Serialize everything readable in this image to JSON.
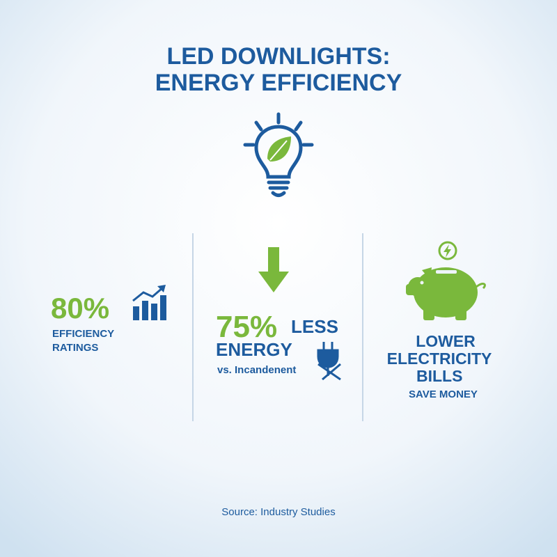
{
  "header": {
    "title_lines": [
      "LED DOWNLIGHTS:",
      "ENERGY EFFICIENCY"
    ]
  },
  "stats": [
    {
      "value": "80%",
      "label_lines": [
        "EFFICIENCY",
        "RATINGS"
      ]
    },
    {
      "value": "75%",
      "headline_lines": [
        "LESS",
        "ENERGY"
      ],
      "note": "vs. Incandenent"
    },
    {
      "headline_lines": [
        "LOWER",
        "ELECTRICITY",
        "BILLS"
      ],
      "note": "SAVE MONEY"
    }
  ],
  "footer": {
    "source": "Source: Industry Studies"
  }
}
